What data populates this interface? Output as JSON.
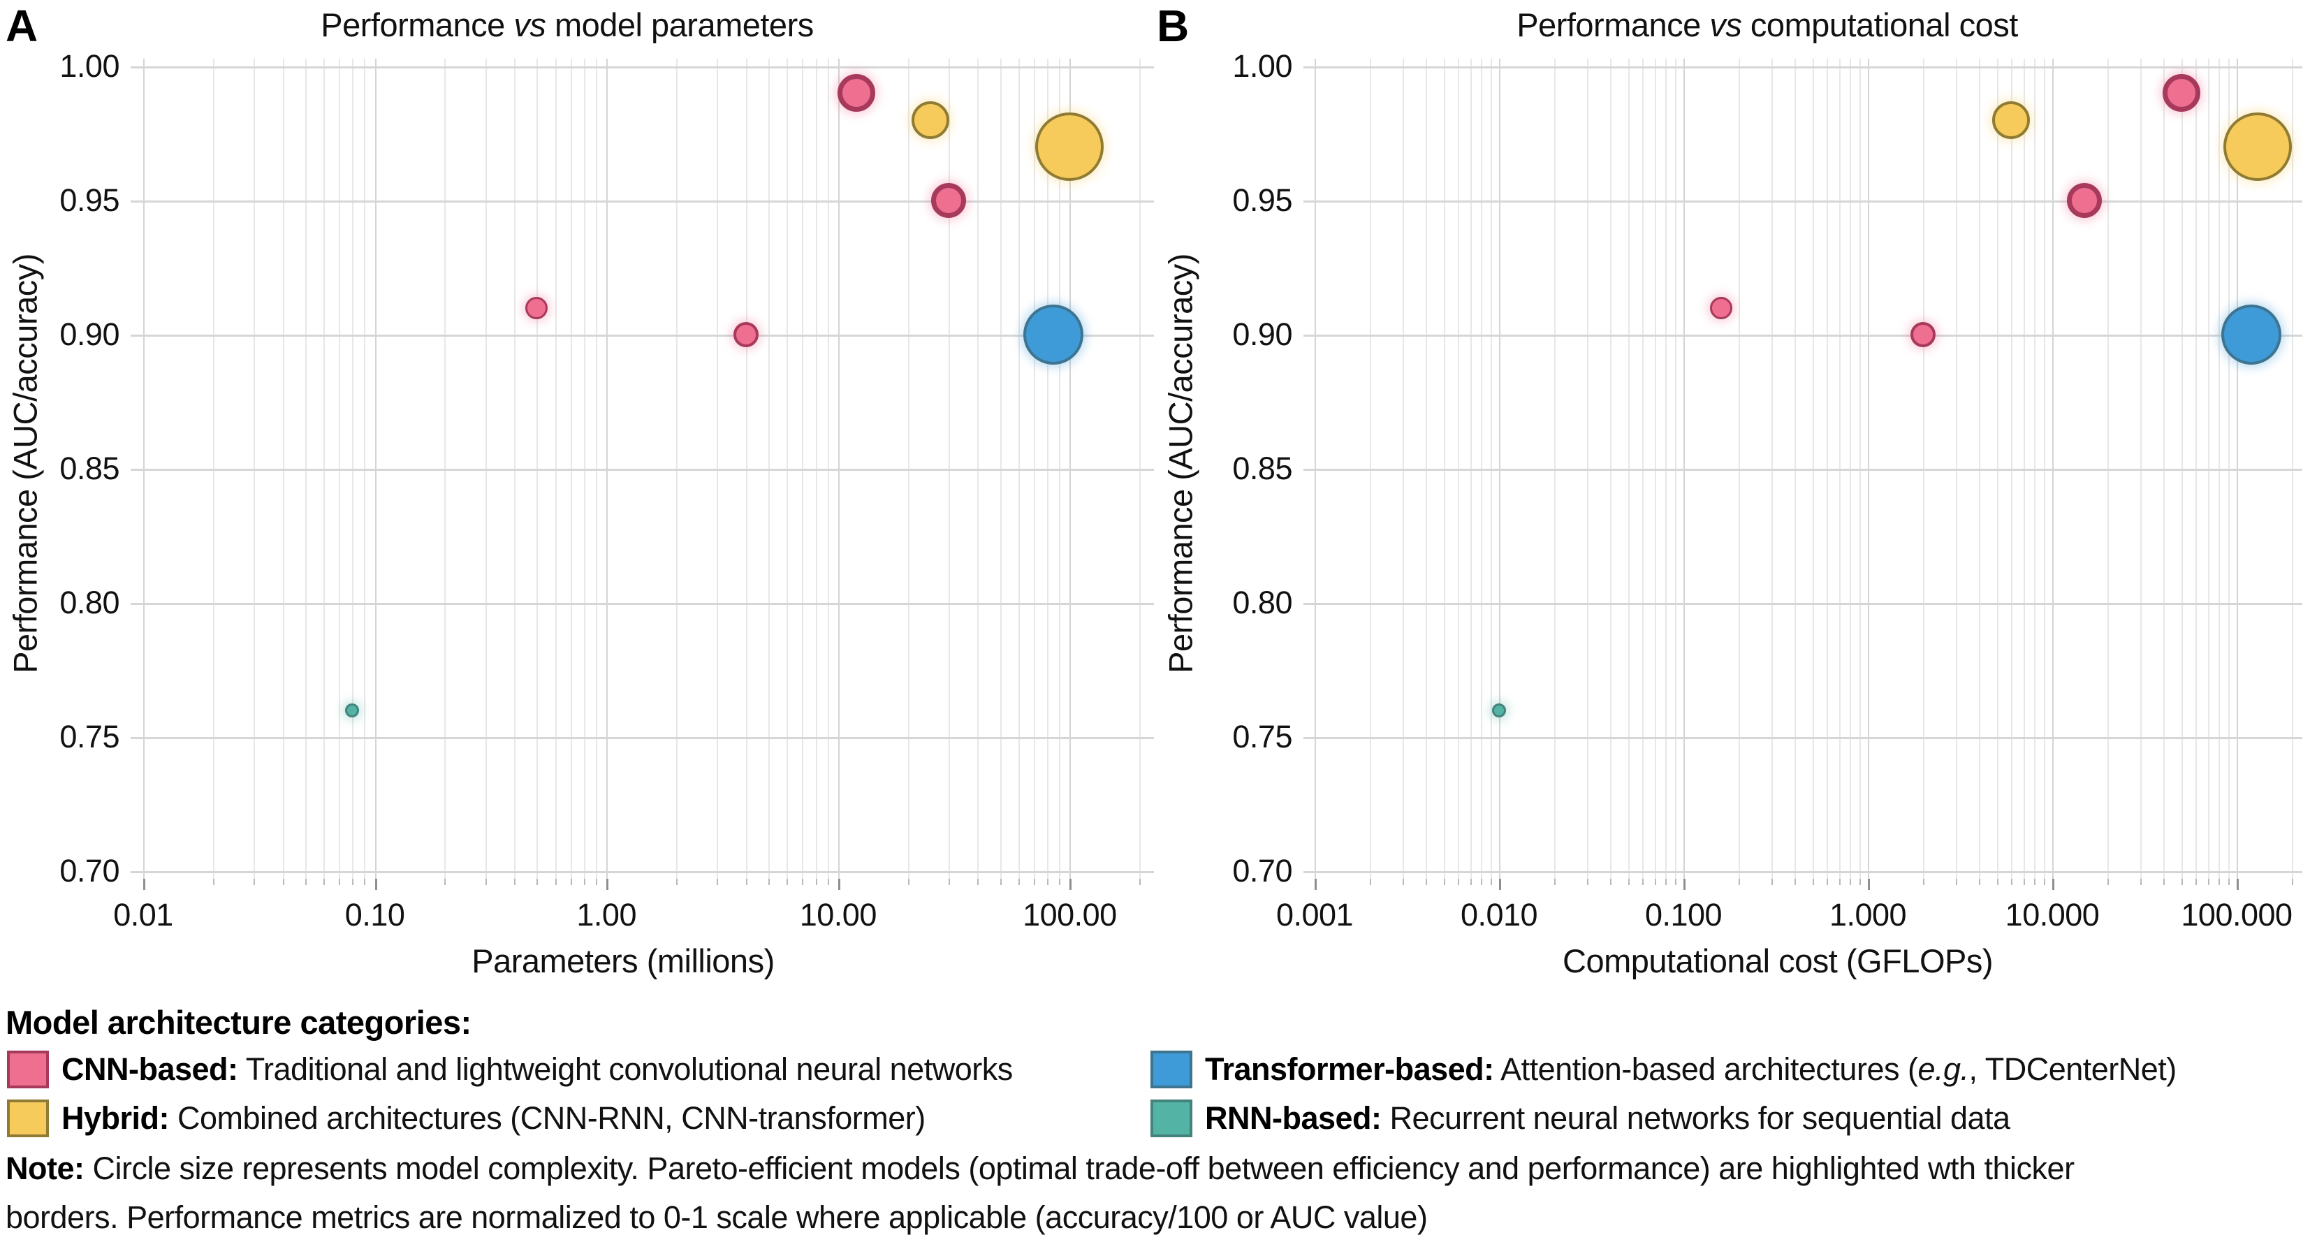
{
  "figure_type": "two-panel bubble chart",
  "note": {
    "label": "Note:",
    "line1": " Circle size represents model complexity. Pareto-efficient models (optimal trade-off between efficiency and performance) are highlighted wth thicker",
    "line2": "borders. Performance metrics are normalized to 0-1 scale where applicable (accuracy/100 or AUC value)"
  },
  "legend": {
    "title": "Model architecture categories:",
    "items": [
      {
        "key": "cnn",
        "label": "CNN-based:",
        "desc": " Traditional and lightweight convolutional neural networks",
        "color": "#EE6F90",
        "edge": "#A73A5C"
      },
      {
        "key": "transformer",
        "label": "Transformer-based:",
        "desc_pre": " Attention-based architectures (",
        "desc_it": "e.g.",
        "desc_post": ", TDCenterNet)",
        "color": "#3F9AD8",
        "edge": "#3D7590"
      },
      {
        "key": "hybrid",
        "label": "Hybrid:",
        "desc": " Combined architectures (CNN-RNN, CNN-transformer)",
        "color": "#F6CB5C",
        "edge": "#8F7B33"
      },
      {
        "key": "rnn",
        "label": "RNN-based:",
        "desc": " Recurrent neural networks for sequential data",
        "color": "#53B4A5",
        "edge": "#44837C"
      }
    ]
  },
  "chart_data": [
    {
      "type": "bubble",
      "panel_label": "A",
      "title_parts": {
        "pre": "Performance ",
        "it": "vs",
        "post": " model parameters"
      },
      "xlabel": "Parameters (millions)",
      "ylabel": "Performance (AUC/accuracy)",
      "x_scale": "log",
      "xlim": [
        0.008,
        230
      ],
      "ylim": [
        0.697,
        1.003
      ],
      "grid": true,
      "x_tick_values": [
        0.01,
        0.1,
        1,
        10,
        100
      ],
      "x_tick_labels": [
        "0.01",
        "0.10",
        "1.00",
        "10.00",
        "100.00"
      ],
      "y_tick_values": [
        1.0,
        0.95,
        0.9,
        0.85,
        0.8,
        0.75,
        0.7
      ],
      "y_tick_labels": [
        "1.00",
        "0.95",
        "0.90",
        "0.85",
        "0.80",
        "0.75",
        "0.70"
      ],
      "size_meaning": "model complexity",
      "series": [
        {
          "name": "CNN-based",
          "color_key": "cnn",
          "points": [
            {
              "x": 0.5,
              "y": 0.91,
              "r": 16,
              "pareto": false
            },
            {
              "x": 4,
              "y": 0.9,
              "r": 18,
              "pareto": false
            },
            {
              "x": 12,
              "y": 0.99,
              "r": 27,
              "pareto": true
            },
            {
              "x": 30,
              "y": 0.95,
              "r": 25,
              "pareto": true
            }
          ]
        },
        {
          "name": "Hybrid",
          "color_key": "hybrid",
          "points": [
            {
              "x": 25,
              "y": 0.98,
              "r": 27,
              "pareto": false
            },
            {
              "x": 100,
              "y": 0.97,
              "r": 49,
              "pareto": false
            }
          ]
        },
        {
          "name": "Transformer-based",
          "color_key": "transformer",
          "points": [
            {
              "x": 85,
              "y": 0.9,
              "r": 43,
              "pareto": false
            }
          ]
        },
        {
          "name": "RNN-based",
          "color_key": "rnn",
          "points": [
            {
              "x": 0.08,
              "y": 0.76,
              "r": 10,
              "pareto": false
            }
          ]
        }
      ]
    },
    {
      "type": "bubble",
      "panel_label": "B",
      "title_parts": {
        "pre": "Performance ",
        "it": "vs",
        "post": " computational cost"
      },
      "xlabel": "Computational cost (GFLOPs)",
      "ylabel": "Performance (AUC/accuracy)",
      "x_scale": "log",
      "xlim": [
        0.00087,
        227
      ],
      "ylim": [
        0.697,
        1.003
      ],
      "grid": true,
      "x_tick_values": [
        0.001,
        0.01,
        0.1,
        1,
        10,
        100
      ],
      "x_tick_labels": [
        "0.001",
        "0.010",
        "0.100",
        "1.000",
        "10.000",
        "100.000"
      ],
      "y_tick_values": [
        1.0,
        0.95,
        0.9,
        0.85,
        0.8,
        0.75,
        0.7
      ],
      "y_tick_labels": [
        "1.00",
        "0.95",
        "0.90",
        "0.85",
        "0.80",
        "0.75",
        "0.70"
      ],
      "size_meaning": "model complexity",
      "series": [
        {
          "name": "CNN-based",
          "color_key": "cnn",
          "points": [
            {
              "x": 0.16,
              "y": 0.91,
              "r": 16,
              "pareto": false
            },
            {
              "x": 2,
              "y": 0.9,
              "r": 18,
              "pareto": false
            },
            {
              "x": 50,
              "y": 0.99,
              "r": 27,
              "pareto": true
            },
            {
              "x": 15,
              "y": 0.95,
              "r": 25,
              "pareto": true
            }
          ]
        },
        {
          "name": "Hybrid",
          "color_key": "hybrid",
          "points": [
            {
              "x": 6,
              "y": 0.98,
              "r": 27,
              "pareto": false
            },
            {
              "x": 130,
              "y": 0.97,
              "r": 49,
              "pareto": false
            }
          ]
        },
        {
          "name": "Transformer-based",
          "color_key": "transformer",
          "points": [
            {
              "x": 120,
              "y": 0.9,
              "r": 43,
              "pareto": false
            }
          ]
        },
        {
          "name": "RNN-based",
          "color_key": "rnn",
          "points": [
            {
              "x": 0.01,
              "y": 0.76,
              "r": 10,
              "pareto": false
            }
          ]
        }
      ]
    }
  ]
}
